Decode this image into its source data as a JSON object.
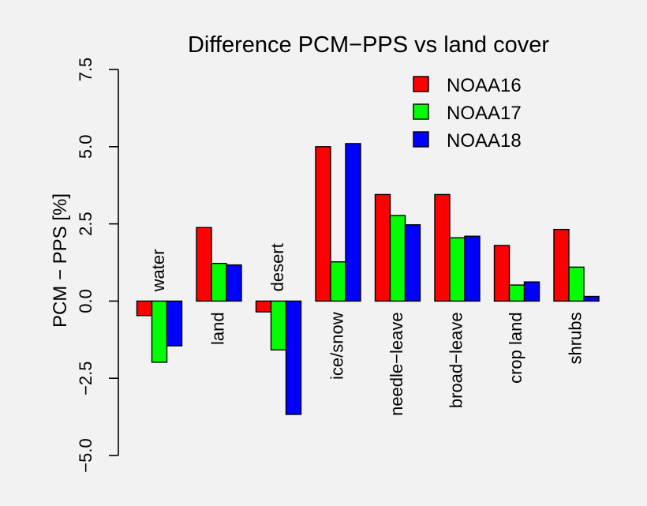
{
  "chart_data": {
    "type": "bar",
    "title": "Difference PCM−PPS vs land cover",
    "xlabel": "",
    "ylabel": "PCM − PPS [%]",
    "ylim": [
      -5.0,
      7.5
    ],
    "yticks": [
      "−5.0",
      "−2.5",
      "0.0",
      "2.5",
      "5.0",
      "7.5"
    ],
    "ytick_values": [
      -5.0,
      -2.5,
      0.0,
      2.5,
      5.0,
      7.5
    ],
    "grid": false,
    "legend_position": "top-right",
    "categories": [
      "water",
      "land",
      "desert",
      "ice/snow",
      "needle−leave",
      "broad−leave",
      "crop land",
      "shrubs"
    ],
    "series": [
      {
        "name": "NOAA16",
        "color": "#ff0000",
        "values": [
          -0.47,
          2.38,
          -0.35,
          5.0,
          3.45,
          3.45,
          1.8,
          2.32
        ]
      },
      {
        "name": "NOAA17",
        "color": "#00ff00",
        "values": [
          -1.98,
          1.22,
          -1.58,
          1.27,
          2.77,
          2.05,
          0.52,
          1.1
        ]
      },
      {
        "name": "NOAA18",
        "color": "#0000ff",
        "values": [
          -1.45,
          1.17,
          -3.67,
          5.1,
          2.47,
          2.1,
          0.62,
          0.15
        ]
      }
    ]
  }
}
